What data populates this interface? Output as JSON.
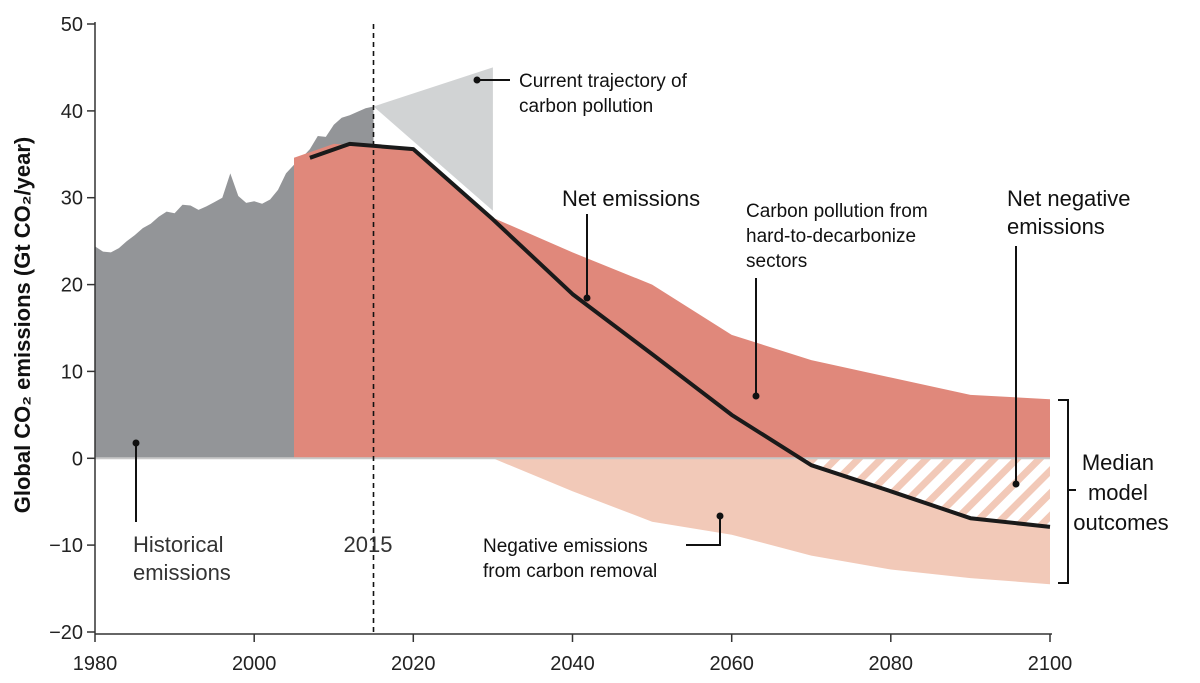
{
  "chart_data": {
    "type": "area",
    "xlabel": "",
    "ylabel": "Global CO₂ emissions (Gt CO₂/year)",
    "xlim": [
      1980,
      2100
    ],
    "ylim": [
      -20,
      50
    ],
    "x_ticks": [
      "1980",
      "2000",
      "2020",
      "2040",
      "2060",
      "2080",
      "2100"
    ],
    "y_ticks": [
      "50",
      "40",
      "30",
      "20",
      "10",
      "0",
      "−10",
      "−20"
    ],
    "grid": false,
    "reference_line": {
      "x": 2015,
      "label": "2015",
      "style": "dashed"
    },
    "series": [
      {
        "name": "Historical emissions",
        "color": "#939598",
        "x": [
          1980,
          1981,
          1982,
          1983,
          1984,
          1985,
          1986,
          1987,
          1988,
          1989,
          1990,
          1991,
          1992,
          1993,
          1994,
          1995,
          1996,
          1997,
          1998,
          1999,
          2000,
          2001,
          2002,
          2003,
          2004,
          2005,
          2006,
          2007,
          2008,
          2009,
          2010,
          2011,
          2012,
          2013,
          2014,
          2015
        ],
        "values": [
          24.4,
          23.8,
          23.7,
          24.2,
          25.0,
          25.7,
          26.5,
          27.0,
          27.8,
          28.4,
          28.2,
          29.2,
          29.1,
          28.6,
          29.0,
          29.5,
          30.0,
          32.8,
          30.2,
          29.4,
          29.6,
          29.3,
          29.8,
          30.9,
          32.8,
          33.8,
          34.6,
          35.6,
          37.1,
          37.0,
          38.4,
          39.2,
          39.5,
          39.9,
          40.3,
          40.5
        ]
      },
      {
        "name": "Current trajectory of carbon pollution",
        "color": "#d1d3d4",
        "x": [
          2015,
          2030
        ],
        "upper": [
          40.5,
          45.0
        ],
        "lower": [
          40.5,
          28.5
        ]
      },
      {
        "name": "Carbon pollution from hard-to-decarbonize sectors",
        "color": "#e0887b",
        "x": [
          2005,
          2010,
          2020,
          2030,
          2040,
          2050,
          2060,
          2070,
          2080,
          2090,
          2100
        ],
        "values": [
          34.6,
          36.2,
          35.6,
          27.7,
          23.7,
          20.0,
          14.2,
          11.3,
          9.3,
          7.3,
          6.8
        ]
      },
      {
        "name": "Negative emissions from carbon removal",
        "color": "#f2c9b8",
        "x": [
          2030,
          2040,
          2050,
          2060,
          2070,
          2080,
          2090,
          2100
        ],
        "values": [
          0,
          -3.8,
          -7.3,
          -8.8,
          -11.2,
          -12.8,
          -13.8,
          -14.5
        ]
      },
      {
        "name": "Net emissions",
        "color": "#231f20",
        "x": [
          2007,
          2012,
          2020,
          2030,
          2040,
          2050,
          2060,
          2070,
          2080,
          2090,
          2100
        ],
        "values": [
          34.6,
          36.2,
          35.6,
          27.5,
          18.9,
          12.0,
          5.0,
          -0.8,
          -3.8,
          -6.9,
          -7.9
        ]
      }
    ],
    "annotations": {
      "current_trajectory": [
        "Current trajectory of",
        "carbon pollution"
      ],
      "net_emissions": "Net emissions",
      "hard_to_decarbonize": [
        "Carbon pollution from",
        "hard-to-decarbonize",
        "sectors"
      ],
      "net_negative": [
        "Net negative",
        "emissions"
      ],
      "historical": [
        "Historical",
        "emissions"
      ],
      "negative_removal": [
        "Negative emissions",
        "from carbon removal"
      ],
      "median": [
        "Median",
        "model",
        "outcomes"
      ]
    }
  }
}
